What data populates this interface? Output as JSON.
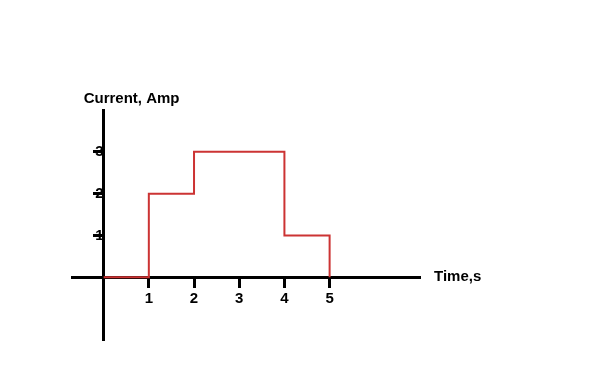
{
  "chart_data": {
    "type": "line",
    "x_label": "Time,s",
    "y_label": "Current, Amp",
    "x": [
      0,
      1,
      1,
      2,
      2,
      4,
      4,
      5,
      5
    ],
    "values": [
      0,
      0,
      2,
      2,
      3,
      3,
      1,
      1,
      0
    ],
    "color": "#cc3333",
    "xlim": [
      -0.7,
      7
    ],
    "ylim": [
      -1.5,
      4
    ],
    "xticks": [
      1,
      2,
      3,
      4,
      5
    ],
    "yticks": [
      1,
      2,
      3
    ],
    "grid": false
  }
}
